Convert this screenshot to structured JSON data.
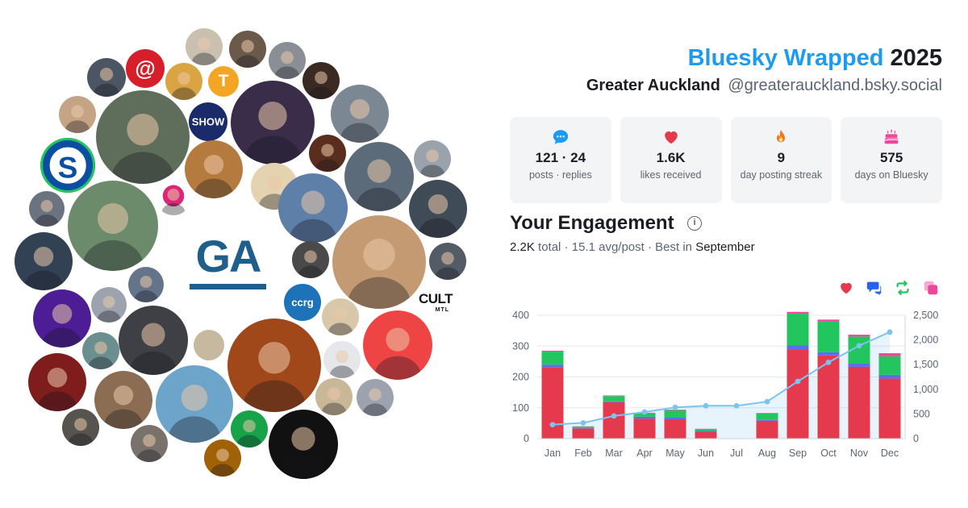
{
  "header": {
    "brand": "Bluesky Wrapped",
    "year": "2025",
    "display_name": "Greater Auckland",
    "handle": "@greaterauckland.bsky.social"
  },
  "center_logo": {
    "text": "GA",
    "color": "#1f5f8b"
  },
  "cluster_badges": {
    "cult_top": "CULT",
    "cult_bottom": "MTL"
  },
  "stats": [
    {
      "icon": "speech-bubble-icon",
      "value": "121 · 24",
      "label": "posts · replies",
      "color": "#1d9bf0"
    },
    {
      "icon": "heart-icon",
      "value": "1.6K",
      "label": "likes received",
      "color": "#e5394d"
    },
    {
      "icon": "flame-icon",
      "value": "9",
      "label": "day posting streak",
      "color": "#f97316"
    },
    {
      "icon": "cake-icon",
      "value": "575",
      "label": "days on Bluesky",
      "color": "#ec4899"
    }
  ],
  "engagement": {
    "title": "Your Engagement",
    "total_value": "2.2K",
    "total_word": "total",
    "avg_value": "15.1",
    "avg_word": "avg/post",
    "best_word": "Best in",
    "best_month": "September",
    "legend": [
      {
        "icon": "heart-icon",
        "color": "#e5394d"
      },
      {
        "icon": "reply-icon",
        "color": "#2563eb"
      },
      {
        "icon": "repost-icon",
        "color": "#22c55e"
      },
      {
        "icon": "quote-icon",
        "color": "#ec4899"
      }
    ]
  },
  "chart_data": {
    "type": "bar",
    "stacked": true,
    "categories": [
      "Jan",
      "Feb",
      "Mar",
      "Apr",
      "May",
      "Jun",
      "Jul",
      "Aug",
      "Sep",
      "Oct",
      "Nov",
      "Dec"
    ],
    "series": [
      {
        "values": [
          232,
          33,
          118,
          65,
          63,
          22,
          0,
          58,
          290,
          270,
          233,
          195
        ],
        "color": "#e5394d"
      },
      {
        "values": [
          8,
          2,
          3,
          6,
          5,
          3,
          0,
          3,
          12,
          10,
          10,
          12
        ],
        "color": "#5b6cf0"
      },
      {
        "values": [
          42,
          4,
          17,
          11,
          24,
          6,
          0,
          20,
          103,
          100,
          88,
          60
        ],
        "color": "#22c55e"
      },
      {
        "values": [
          3,
          1,
          2,
          2,
          2,
          1,
          0,
          2,
          6,
          6,
          6,
          10
        ],
        "color": "#ec4899"
      }
    ],
    "cumulative": {
      "values": [
        284,
        320,
        460,
        540,
        634,
        666,
        666,
        750,
        1160,
        1546,
        1883,
        2160
      ],
      "color": "#7cc4f0"
    },
    "y_left": {
      "ticks": [
        0,
        100,
        200,
        300,
        400
      ],
      "lim": [
        0,
        400
      ]
    },
    "y_right": {
      "ticks": [
        0,
        500,
        1000,
        1500,
        2000,
        2500
      ],
      "lim": [
        0,
        2500
      ]
    },
    "grid": true
  }
}
